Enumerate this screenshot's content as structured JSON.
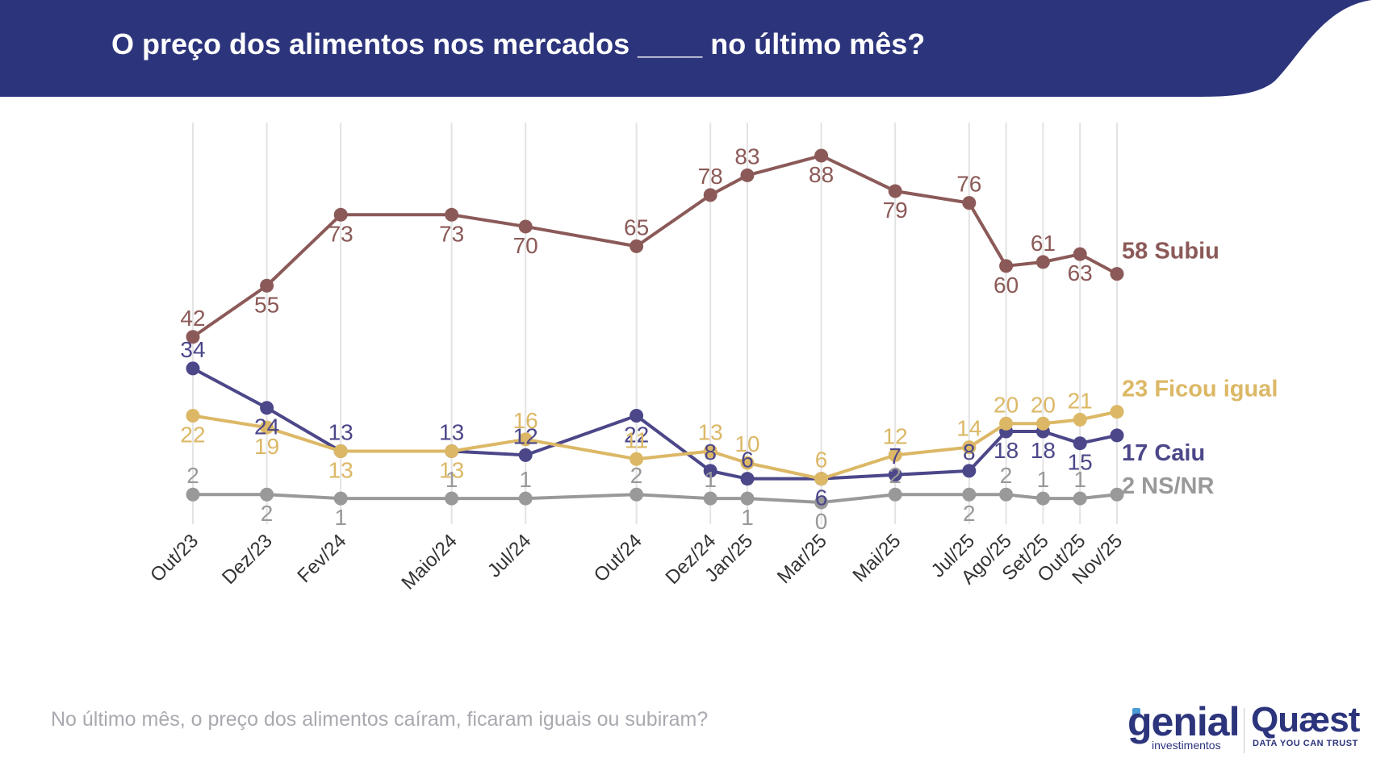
{
  "title": "O preço dos alimentos nos mercados ____ no último mês?",
  "footnote": "No último mês, o preço dos alimentos caíram, ficaram iguais ou subiram?",
  "logos": {
    "genial": "genial",
    "genial_sub": "investimentos",
    "quaest": "Quæst",
    "quaest_sub": "DATA YOU CAN TRUST"
  },
  "colors": {
    "header": "#2c347c",
    "subiu": "#8b5a58",
    "ficou_igual": "#dcb866",
    "caiu": "#4b4789",
    "nsnr": "#999999",
    "grid": "#e3e3e3"
  },
  "chart_data": {
    "type": "line",
    "x": [
      "Out/23",
      "Dez/23",
      "Fev/24",
      "Maio/24",
      "Jul/24",
      "Out/24",
      "Dez/24",
      "Jan/25",
      "Mar/25",
      "Mai/25",
      "Jul/25",
      "Ago/25",
      "Set/25",
      "Out/25",
      "Nov/25"
    ],
    "x_months": [
      0,
      2,
      4,
      7,
      9,
      12,
      14,
      15,
      17,
      19,
      21,
      22,
      23,
      24,
      25
    ],
    "ylim": [
      0,
      100
    ],
    "grid": "vertical",
    "legend": "end-of-line labels",
    "series": [
      {
        "key": "subiu",
        "name": "Subiu",
        "end_label": "58 Subiu",
        "values": [
          42,
          55,
          73,
          73,
          70,
          65,
          78,
          83,
          88,
          79,
          76,
          60,
          61,
          63,
          58
        ],
        "label_pos": [
          "above",
          "below",
          "below",
          "below",
          "below",
          "above",
          "above",
          "above",
          "below",
          "below",
          "above",
          "below",
          "above",
          "below",
          "none"
        ]
      },
      {
        "key": "ficou_igual",
        "name": "Ficou igual",
        "end_label": "23 Ficou igual",
        "values": [
          22,
          19,
          13,
          13,
          16,
          11,
          13,
          10,
          6,
          12,
          14,
          20,
          20,
          21,
          23
        ],
        "label_pos": [
          "below",
          "below",
          "below",
          "below",
          "above",
          "above",
          "above",
          "above",
          "above",
          "above",
          "above",
          "above",
          "above",
          "above",
          "none"
        ]
      },
      {
        "key": "caiu",
        "name": "Caiu",
        "end_label": "17 Caiu",
        "values": [
          34,
          24,
          13,
          13,
          12,
          22,
          8,
          6,
          6,
          7,
          8,
          18,
          18,
          15,
          17
        ],
        "label_pos": [
          "above",
          "below",
          "above",
          "above",
          "above",
          "below",
          "above",
          "above",
          "below",
          "above",
          "above",
          "below",
          "below",
          "below",
          "none"
        ]
      },
      {
        "key": "nsnr",
        "name": "NS/NR",
        "end_label": "2 NS/NR",
        "values": [
          2,
          2,
          1,
          1,
          1,
          2,
          1,
          1,
          0,
          2,
          2,
          2,
          1,
          1,
          2
        ],
        "label_pos": [
          "above",
          "below",
          "below",
          "above",
          "above",
          "above",
          "above",
          "below",
          "below",
          "above",
          "below",
          "above",
          "above",
          "above",
          "none"
        ]
      }
    ]
  }
}
